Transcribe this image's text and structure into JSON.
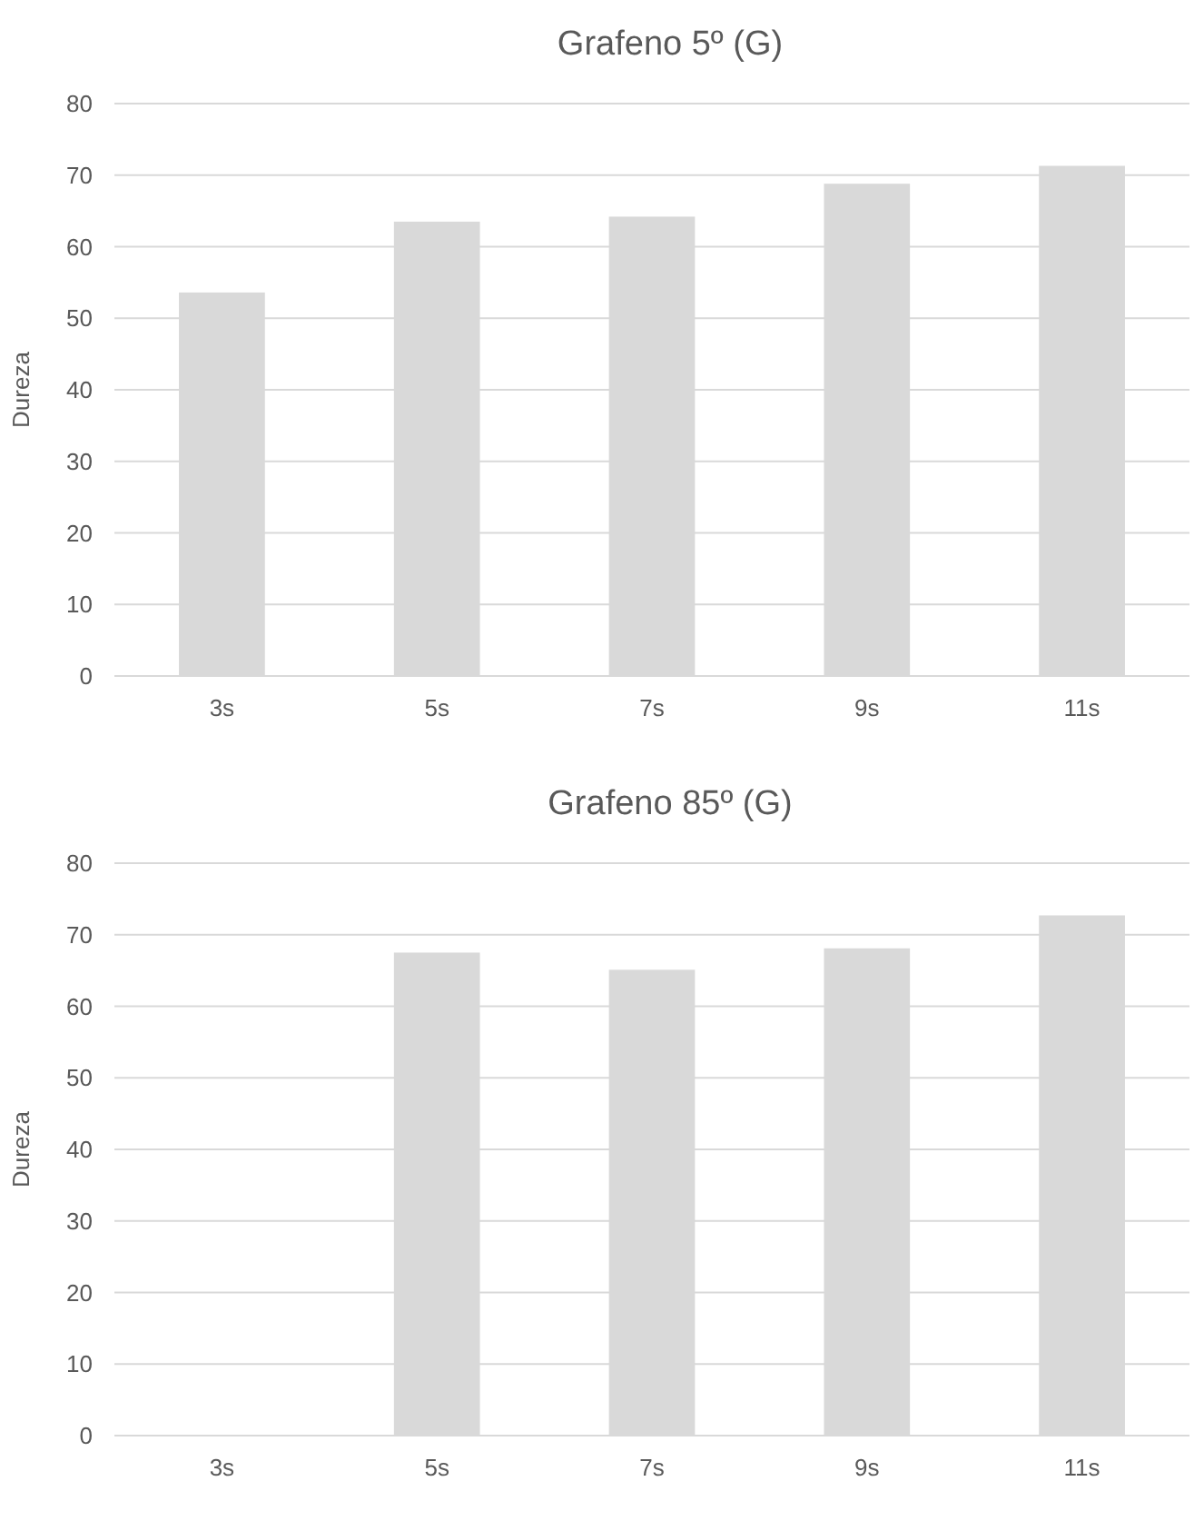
{
  "chart_data": [
    {
      "type": "bar",
      "title": "Grafeno 5º (G)",
      "ylabel": "Dureza",
      "categories": [
        "3s",
        "5s",
        "7s",
        "9s",
        "11s"
      ],
      "values": [
        53.6,
        63.5,
        64.2,
        68.8,
        71.3
      ],
      "color": "#d9d9d9",
      "ylim": [
        0,
        80
      ],
      "yticks": [
        0,
        10,
        20,
        30,
        40,
        50,
        60,
        70,
        80
      ],
      "grid": "y"
    },
    {
      "type": "bar",
      "title": "Grafeno 85º (G)",
      "ylabel": "Dureza",
      "categories": [
        "3s",
        "5s",
        "7s",
        "9s",
        "11s"
      ],
      "values": [
        null,
        67.5,
        65.1,
        68.1,
        72.7
      ],
      "color": "#d9d9d9",
      "ylim": [
        0,
        80
      ],
      "yticks": [
        0,
        10,
        20,
        30,
        40,
        50,
        60,
        70,
        80
      ],
      "grid": "y"
    }
  ]
}
